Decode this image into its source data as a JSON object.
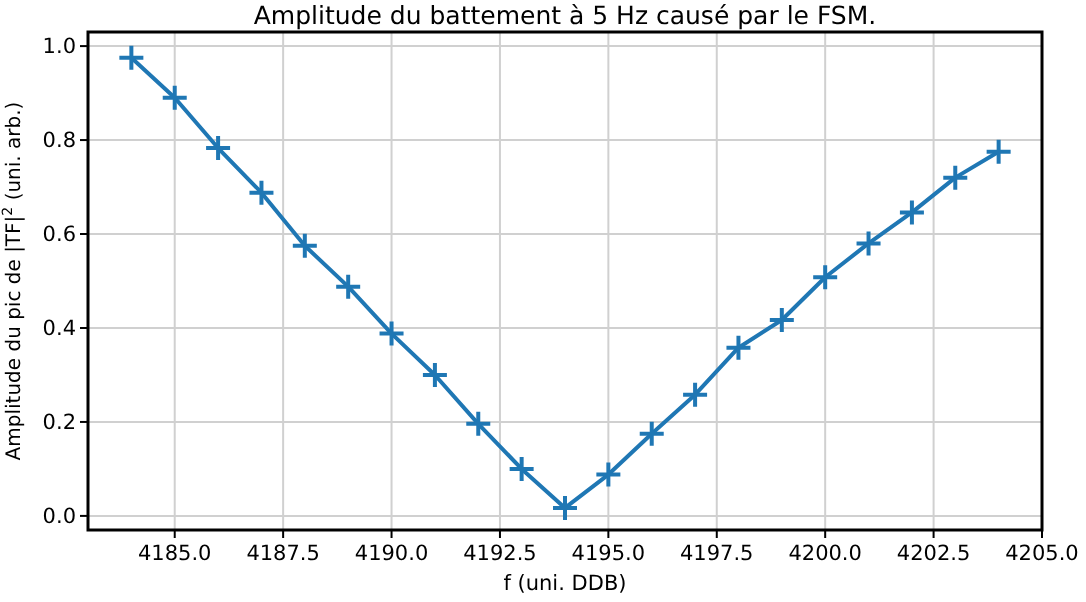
{
  "chart_data": {
    "type": "line",
    "title": "Amplitude du battement à 5 Hz causé par le FSM.",
    "xlabel": "f (uni. DDB)",
    "ylabel": "Amplitude du pic de |TF|$^{2}$ (uni. arb.)",
    "x": [
      4184,
      4185,
      4186,
      4187,
      4188,
      4189,
      4190,
      4191,
      4192,
      4193,
      4194,
      4195,
      4196,
      4197,
      4198,
      4199,
      4200,
      4201,
      4202,
      4203,
      4204
    ],
    "series": [
      {
        "color": "#1f77b4",
        "values": [
          0.975,
          0.89,
          0.783,
          0.688,
          0.575,
          0.488,
          0.388,
          0.3,
          0.196,
          0.1,
          0.017,
          0.088,
          0.175,
          0.258,
          0.358,
          0.417,
          0.508,
          0.58,
          0.646,
          0.72,
          0.775
        ]
      }
    ],
    "xlim": [
      4183,
      4205
    ],
    "ylim": [
      -0.03,
      1.03
    ],
    "xticks": [
      {
        "value": 4185,
        "label": "4185.0"
      },
      {
        "value": 4187.5,
        "label": "4187.5"
      },
      {
        "value": 4190,
        "label": "4190.0"
      },
      {
        "value": 4192.5,
        "label": "4192.5"
      },
      {
        "value": 4195,
        "label": "4195.0"
      },
      {
        "value": 4197.5,
        "label": "4197.5"
      },
      {
        "value": 4200,
        "label": "4200.0"
      },
      {
        "value": 4202.5,
        "label": "4202.5"
      },
      {
        "value": 4205,
        "label": "4205.0"
      }
    ],
    "yticks": [
      {
        "value": 0,
        "label": "0.0"
      },
      {
        "value": 0.2,
        "label": "0.2"
      },
      {
        "value": 0.4,
        "label": "0.4"
      },
      {
        "value": 0.6,
        "label": "0.6"
      },
      {
        "value": 0.8,
        "label": "0.8"
      },
      {
        "value": 1,
        "label": "1.0"
      }
    ],
    "grid": true,
    "marker": "cross",
    "line_style": "solid"
  }
}
